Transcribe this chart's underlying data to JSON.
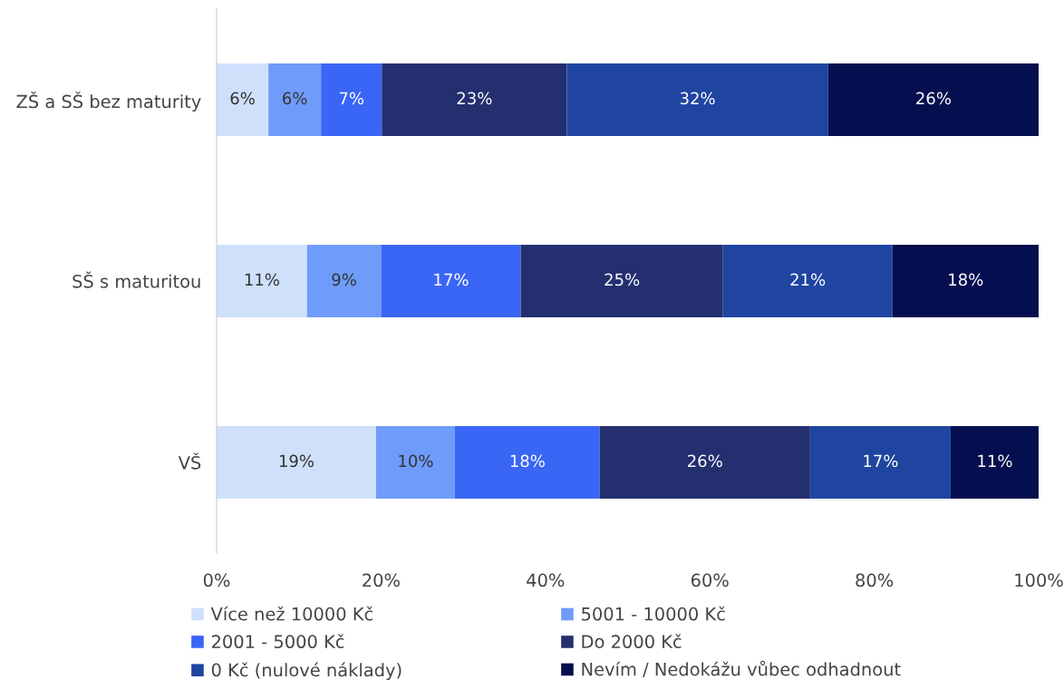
{
  "chart_data": {
    "type": "bar",
    "orientation": "horizontal",
    "stacked": true,
    "categories": [
      "ZŠ a SŠ bez maturity",
      "SŠ s maturitou",
      "VŠ"
    ],
    "series": [
      {
        "name": "Více než 10000 Kč",
        "color": "#cfe0fb",
        "values": [
          6.3,
          11.0,
          19.4
        ],
        "value_labels": [
          "6%",
          "11%",
          "19%"
        ]
      },
      {
        "name": "5001 - 10000 Kč",
        "color": "#6f9cfa",
        "values": [
          6.4,
          9.0,
          9.6
        ],
        "value_labels": [
          "6%",
          "9%",
          "10%"
        ]
      },
      {
        "name": "2001 - 5000 Kč",
        "color": "#3a66f5",
        "values": [
          7.4,
          17.0,
          17.6
        ],
        "value_labels": [
          "7%",
          "17%",
          "18%"
        ]
      },
      {
        "name": "Do 2000 Kč",
        "color": "#232f6f",
        "values": [
          22.5,
          24.6,
          25.6
        ],
        "value_labels": [
          "23%",
          "25%",
          "26%"
        ]
      },
      {
        "name": "0 Kč (nulové náklady)",
        "color": "#1f45a0",
        "values": [
          31.8,
          20.6,
          17.1
        ],
        "value_labels": [
          "32%",
          "21%",
          "17%"
        ]
      },
      {
        "name": "Nevím / Nedokážu vůbec odhadnout",
        "color": "#050f4f",
        "values": [
          25.6,
          17.8,
          10.7
        ],
        "value_labels": [
          "26%",
          "18%",
          "11%"
        ]
      }
    ],
    "xlim": [
      0,
      100
    ],
    "xticks": [
      {
        "value": 0,
        "label": "0%"
      },
      {
        "value": 20,
        "label": "20%"
      },
      {
        "value": 40,
        "label": "40%"
      },
      {
        "value": 60,
        "label": "60%"
      },
      {
        "value": 80,
        "label": "80%"
      },
      {
        "value": 100,
        "label": "100%"
      }
    ],
    "grid": false,
    "legend": "bottom"
  }
}
